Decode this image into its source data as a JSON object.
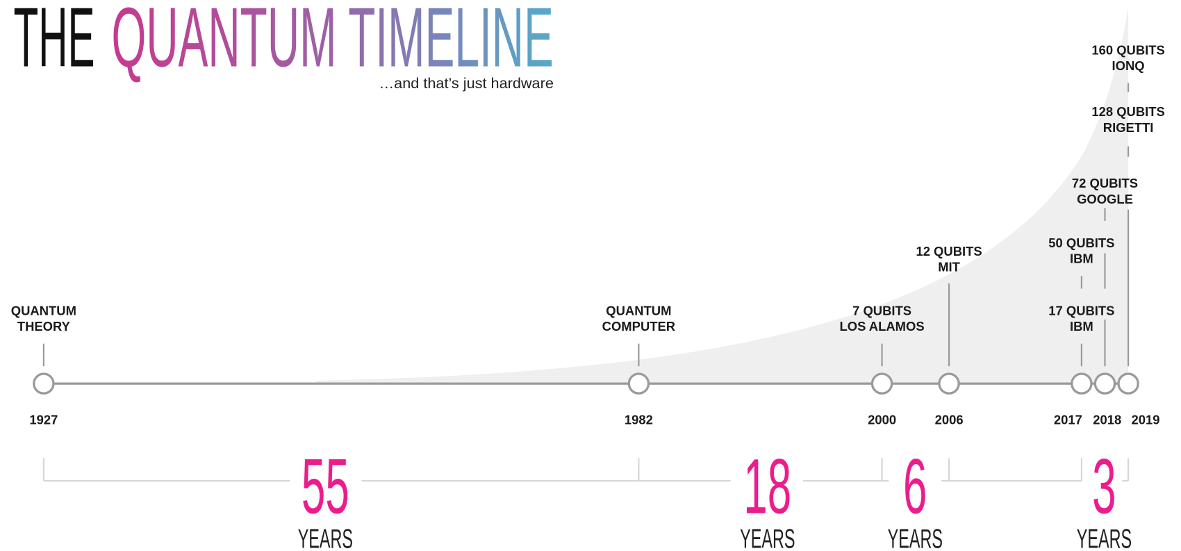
{
  "title": {
    "prefix": "THE",
    "main": "QUANTUM TIMELINE"
  },
  "subtitle": "…and that’s just hardware",
  "years": [
    "1927",
    "1982",
    "2000",
    "2006",
    "2017",
    "2018",
    "2019"
  ],
  "events": [
    {
      "lines": [
        "QUANTUM",
        "THEORY"
      ]
    },
    {
      "lines": [
        "QUANTUM",
        "COMPUTER"
      ]
    },
    {
      "lines": [
        "7 QUBITS",
        "LOS ALAMOS"
      ]
    },
    {
      "lines": [
        "12 QUBITS",
        "MIT"
      ]
    },
    {
      "lines": [
        "17 QUBITS",
        "IBM"
      ]
    },
    {
      "lines": [
        "50 QUBITS",
        "IBM"
      ]
    },
    {
      "lines": [
        "72 QUBITS",
        "GOOGLE"
      ]
    },
    {
      "lines": [
        "128 QUBITS",
        "RIGETTI"
      ]
    },
    {
      "lines": [
        "160 QUBITS",
        "IONQ"
      ]
    }
  ],
  "gaps": [
    {
      "number": "55",
      "unit": "YEARS"
    },
    {
      "number": "18",
      "unit": "YEARS"
    },
    {
      "number": "6",
      "unit": "YEARS"
    },
    {
      "number": "3",
      "unit": "YEARS"
    }
  ]
}
